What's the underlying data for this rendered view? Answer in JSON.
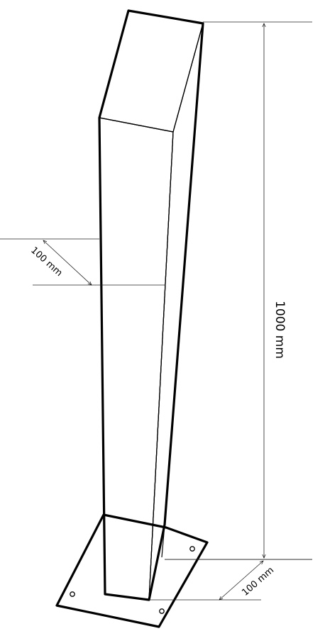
{
  "dimensions": {
    "height_label": "1000 mm",
    "width_label": "100 mm",
    "base_label": "100 mm"
  },
  "colors": {
    "line": "#000000",
    "background": "#ffffff"
  }
}
